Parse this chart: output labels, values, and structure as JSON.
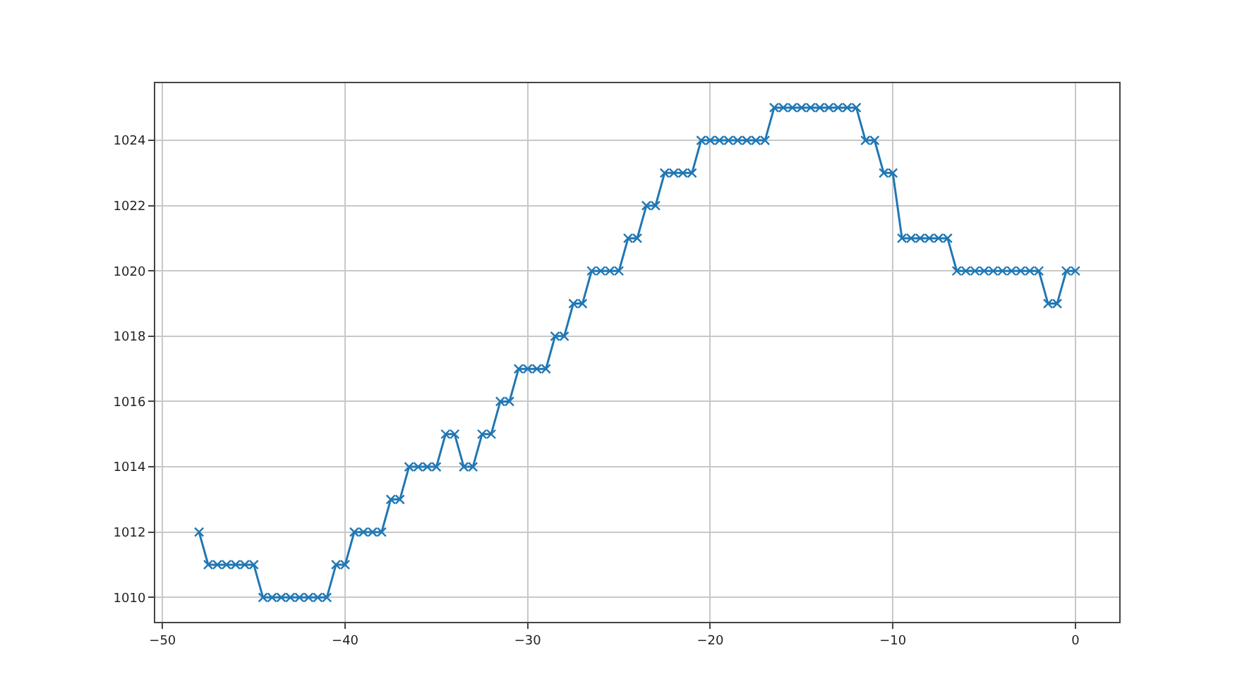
{
  "chart_data": {
    "type": "line",
    "x": [
      -48,
      -47.5,
      -47,
      -46.5,
      -46,
      -45.5,
      -45,
      -44.5,
      -44,
      -43.5,
      -43,
      -42.5,
      -42,
      -41.5,
      -41,
      -40.5,
      -40,
      -39.5,
      -39,
      -38.5,
      -38,
      -37.5,
      -37,
      -36.5,
      -36,
      -35.5,
      -35,
      -34.5,
      -34,
      -33.5,
      -33,
      -32.5,
      -32,
      -31.5,
      -31,
      -30.5,
      -30,
      -29.5,
      -29,
      -28.5,
      -28,
      -27.5,
      -27,
      -26.5,
      -26,
      -25.5,
      -25,
      -24.5,
      -24,
      -23.5,
      -23,
      -22.5,
      -22,
      -21.5,
      -21,
      -20.5,
      -20,
      -19.5,
      -19,
      -18.5,
      -18,
      -17.5,
      -17,
      -16.5,
      -16,
      -15.5,
      -15,
      -14.5,
      -14,
      -13.5,
      -13,
      -12.5,
      -12,
      -11.5,
      -11,
      -10.5,
      -10,
      -9.5,
      -9,
      -8.5,
      -8,
      -7.5,
      -7,
      -6.5,
      -6,
      -5.5,
      -5,
      -4.5,
      -4,
      -3.5,
      -3,
      -2.5,
      -2,
      -1.5,
      -1,
      -0.5,
      0
    ],
    "series": [
      {
        "color": "#1f77b4",
        "values": [
          1012,
          1011,
          1011,
          1011,
          1011,
          1011,
          1011,
          1010,
          1010,
          1010,
          1010,
          1010,
          1010,
          1010,
          1010,
          1011,
          1011,
          1012,
          1012,
          1012,
          1012,
          1013,
          1013,
          1014,
          1014,
          1014,
          1014,
          1015,
          1015,
          1014,
          1014,
          1015,
          1015,
          1016,
          1016,
          1017,
          1017,
          1017,
          1017,
          1018,
          1018,
          1019,
          1019,
          1020,
          1020,
          1020,
          1020,
          1021,
          1021,
          1022,
          1022,
          1023,
          1023,
          1023,
          1023,
          1024,
          1024,
          1024,
          1024,
          1024,
          1024,
          1024,
          1024,
          1025,
          1025,
          1025,
          1025,
          1025,
          1025,
          1025,
          1025,
          1025,
          1025,
          1024,
          1024,
          1023,
          1023,
          1021,
          1021,
          1021,
          1021,
          1021,
          1021,
          1020,
          1020,
          1020,
          1020,
          1020,
          1020,
          1020,
          1020,
          1020,
          1020,
          1019,
          1019,
          1020,
          1020
        ]
      }
    ],
    "xlim": [
      -50.4,
      2.4
    ],
    "xticks": [
      {
        "value": -50,
        "label": "−50"
      },
      {
        "value": -40,
        "label": "−40"
      },
      {
        "value": -30,
        "label": "−30"
      },
      {
        "value": -20,
        "label": "−20"
      },
      {
        "value": -10,
        "label": "−10"
      },
      0
    ],
    "ylim": [
      1009.25,
      1025.75
    ],
    "yticks": [
      1010,
      1012,
      1014,
      1016,
      1018,
      1020,
      1022,
      1024
    ],
    "grid": true,
    "marker": "cross",
    "line_style": "solid"
  }
}
